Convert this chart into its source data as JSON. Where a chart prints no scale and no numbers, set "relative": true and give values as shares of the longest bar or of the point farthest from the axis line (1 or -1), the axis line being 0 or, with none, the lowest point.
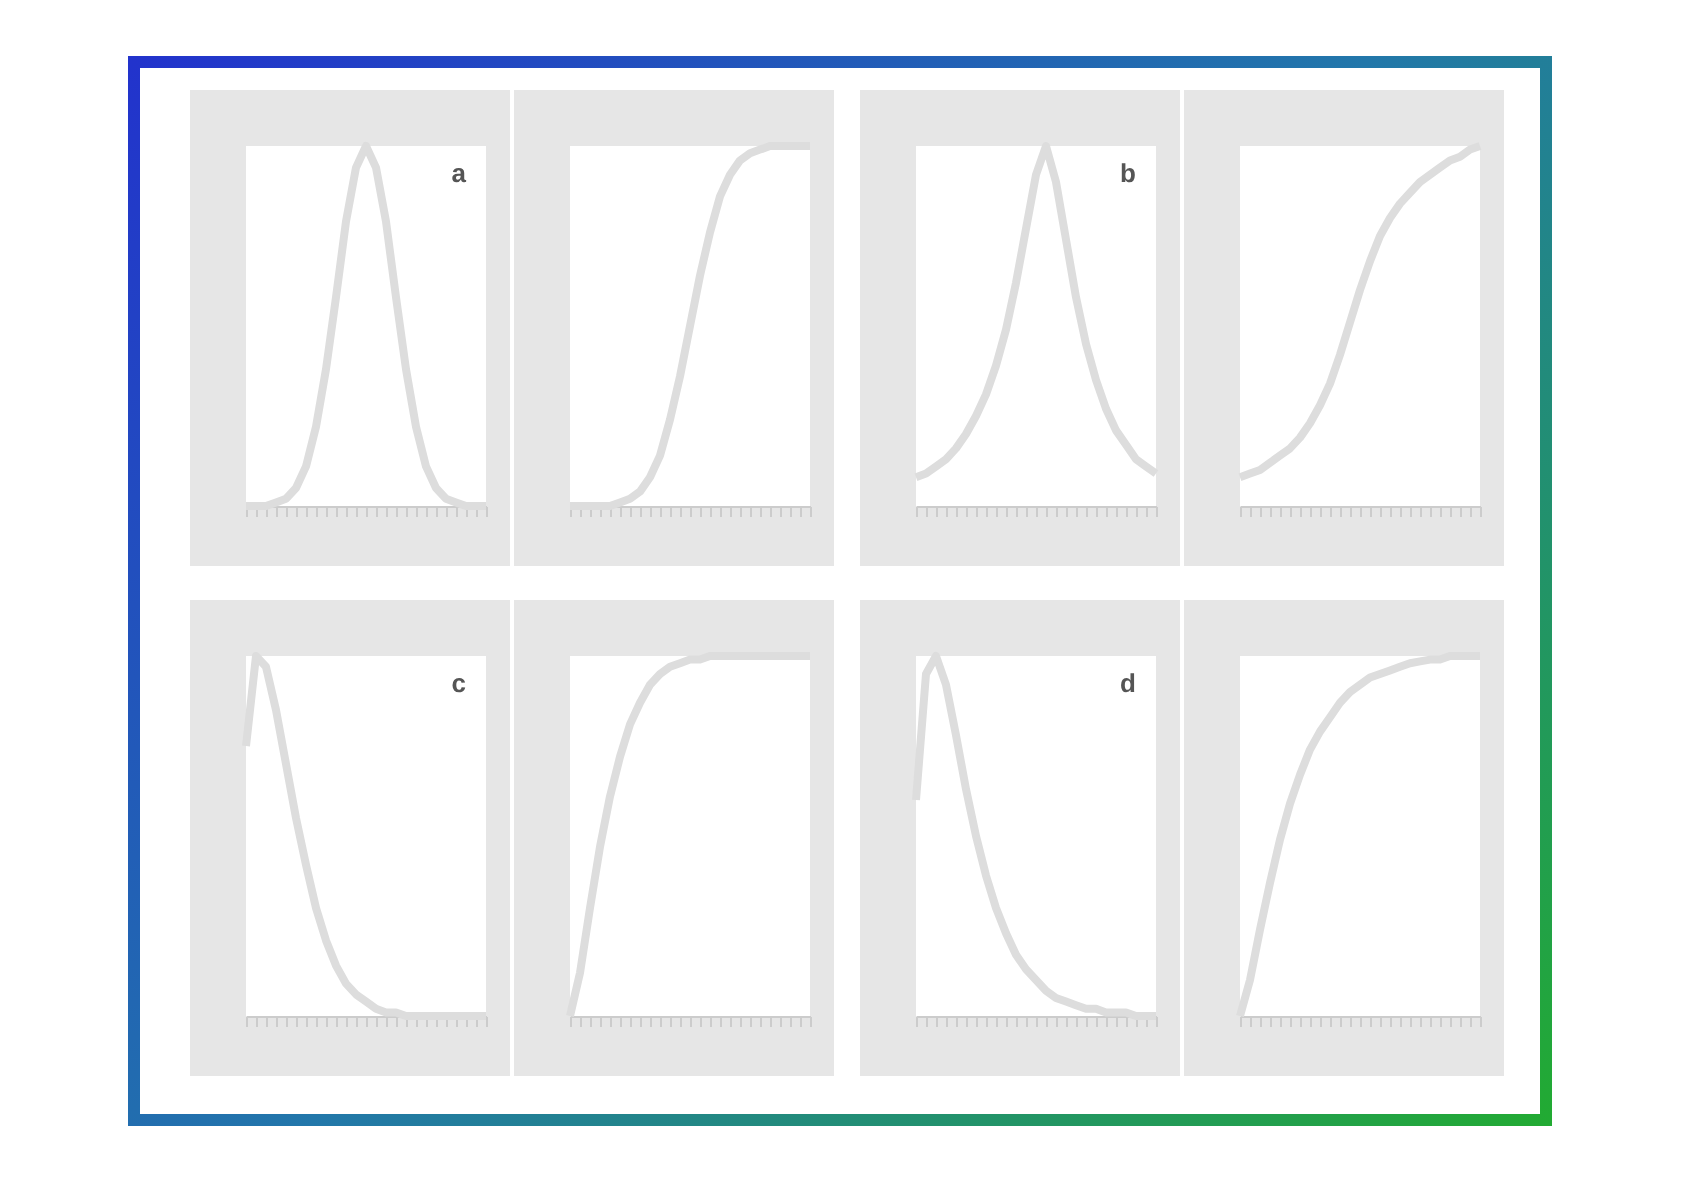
{
  "chart_data": [
    {
      "type": "line",
      "relative": true,
      "tick_labels": false,
      "annotations": [
        "a"
      ],
      "categories": [
        null,
        null,
        null,
        null,
        null,
        null,
        null,
        null,
        null,
        null,
        null,
        null,
        null,
        null,
        null,
        null,
        null,
        null,
        null,
        null,
        null,
        null,
        null,
        null,
        null
      ],
      "series": [
        {
          "color": "#dddddd",
          "values": [
            0,
            0,
            0,
            0.01,
            0.02,
            0.05,
            0.11,
            0.22,
            0.38,
            0.58,
            0.79,
            0.94,
            1,
            0.94,
            0.79,
            0.58,
            0.38,
            0.22,
            0.11,
            0.05,
            0.02,
            0.01,
            0,
            0,
            0
          ]
        }
      ]
    },
    {
      "type": "line",
      "relative": true,
      "tick_labels": false,
      "categories": [
        null,
        null,
        null,
        null,
        null,
        null,
        null,
        null,
        null,
        null,
        null,
        null,
        null,
        null,
        null,
        null,
        null,
        null,
        null,
        null,
        null,
        null,
        null,
        null,
        null
      ],
      "series": [
        {
          "color": "#dddddd",
          "values": [
            0,
            0,
            0,
            0,
            0,
            0.01,
            0.02,
            0.04,
            0.08,
            0.14,
            0.24,
            0.36,
            0.5,
            0.64,
            0.76,
            0.86,
            0.92,
            0.96,
            0.98,
            0.99,
            1,
            1,
            1,
            1,
            1
          ]
        }
      ]
    },
    {
      "type": "line",
      "relative": true,
      "tick_labels": false,
      "annotations": [
        "b"
      ],
      "categories": [
        null,
        null,
        null,
        null,
        null,
        null,
        null,
        null,
        null,
        null,
        null,
        null,
        null,
        null,
        null,
        null,
        null,
        null,
        null,
        null,
        null,
        null,
        null,
        null,
        null
      ],
      "series": [
        {
          "color": "#dddddd",
          "values": [
            0.08,
            0.09,
            0.11,
            0.13,
            0.16,
            0.2,
            0.25,
            0.31,
            0.39,
            0.49,
            0.62,
            0.77,
            0.92,
            1,
            0.9,
            0.74,
            0.58,
            0.45,
            0.35,
            0.27,
            0.21,
            0.17,
            0.13,
            0.11,
            0.09
          ]
        }
      ]
    },
    {
      "type": "line",
      "relative": true,
      "tick_labels": false,
      "categories": [
        null,
        null,
        null,
        null,
        null,
        null,
        null,
        null,
        null,
        null,
        null,
        null,
        null,
        null,
        null,
        null,
        null,
        null,
        null,
        null,
        null,
        null,
        null,
        null,
        null
      ],
      "series": [
        {
          "color": "#dddddd",
          "values": [
            0.08,
            0.09,
            0.1,
            0.12,
            0.14,
            0.16,
            0.19,
            0.23,
            0.28,
            0.34,
            0.42,
            0.51,
            0.6,
            0.68,
            0.75,
            0.8,
            0.84,
            0.87,
            0.9,
            0.92,
            0.94,
            0.96,
            0.97,
            0.99,
            1
          ]
        }
      ]
    },
    {
      "type": "line",
      "relative": true,
      "tick_labels": false,
      "annotations": [
        "c"
      ],
      "categories": [
        null,
        null,
        null,
        null,
        null,
        null,
        null,
        null,
        null,
        null,
        null,
        null,
        null,
        null,
        null,
        null,
        null,
        null,
        null,
        null,
        null,
        null,
        null,
        null,
        null
      ],
      "series": [
        {
          "color": "#dddddd",
          "values": [
            0.75,
            1,
            0.97,
            0.85,
            0.7,
            0.55,
            0.42,
            0.3,
            0.21,
            0.14,
            0.09,
            0.06,
            0.04,
            0.02,
            0.01,
            0.01,
            0,
            0,
            0,
            0,
            0,
            0,
            0,
            0,
            0
          ]
        }
      ]
    },
    {
      "type": "line",
      "relative": true,
      "tick_labels": false,
      "categories": [
        null,
        null,
        null,
        null,
        null,
        null,
        null,
        null,
        null,
        null,
        null,
        null,
        null,
        null,
        null,
        null,
        null,
        null,
        null,
        null,
        null,
        null,
        null,
        null,
        null
      ],
      "series": [
        {
          "color": "#dddddd",
          "values": [
            0,
            0.12,
            0.3,
            0.47,
            0.61,
            0.72,
            0.81,
            0.87,
            0.92,
            0.95,
            0.97,
            0.98,
            0.99,
            0.99,
            1,
            1,
            1,
            1,
            1,
            1,
            1,
            1,
            1,
            1,
            1
          ]
        }
      ]
    },
    {
      "type": "line",
      "relative": true,
      "tick_labels": false,
      "annotations": [
        "d"
      ],
      "categories": [
        null,
        null,
        null,
        null,
        null,
        null,
        null,
        null,
        null,
        null,
        null,
        null,
        null,
        null,
        null,
        null,
        null,
        null,
        null,
        null,
        null,
        null,
        null,
        null,
        null
      ],
      "series": [
        {
          "color": "#dddddd",
          "values": [
            0.6,
            0.95,
            1,
            0.92,
            0.78,
            0.63,
            0.5,
            0.39,
            0.3,
            0.23,
            0.17,
            0.13,
            0.1,
            0.07,
            0.05,
            0.04,
            0.03,
            0.02,
            0.02,
            0.01,
            0.01,
            0.01,
            0,
            0,
            0
          ]
        }
      ]
    },
    {
      "type": "line",
      "relative": true,
      "tick_labels": false,
      "categories": [
        null,
        null,
        null,
        null,
        null,
        null,
        null,
        null,
        null,
        null,
        null,
        null,
        null,
        null,
        null,
        null,
        null,
        null,
        null,
        null,
        null,
        null,
        null,
        null,
        null
      ],
      "series": [
        {
          "color": "#dddddd",
          "values": [
            0,
            0.1,
            0.24,
            0.37,
            0.49,
            0.59,
            0.67,
            0.74,
            0.79,
            0.83,
            0.87,
            0.9,
            0.92,
            0.94,
            0.95,
            0.96,
            0.97,
            0.98,
            0.985,
            0.99,
            0.99,
            1,
            1,
            1,
            1
          ]
        }
      ]
    }
  ]
}
